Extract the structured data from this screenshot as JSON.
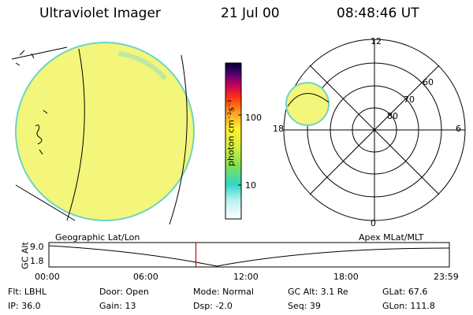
{
  "header": {
    "instrument": "Ultraviolet Imager",
    "date": "21 Jul 00",
    "time": "08:48:46 UT"
  },
  "colorbar": {
    "unit_label": "photon cm⁻²s⁻¹",
    "ticks": [
      "100",
      "10"
    ]
  },
  "polar_plot": {
    "mlt_labels": [
      "12",
      "18",
      "6",
      "0"
    ],
    "lat_labels": [
      "60",
      "70",
      "80"
    ]
  },
  "altitude_plot": {
    "ylabel": "GC Alt",
    "yticks": [
      "9.0",
      "1.8"
    ],
    "left_title": "Geographic Lat/Lon",
    "right_title": "Apex MLat/MLT",
    "xticks": [
      "00:00",
      "06:00",
      "12:00",
      "18:00",
      "23:59"
    ],
    "current_time_hours": 8.81,
    "marker_color": "#cc0000"
  },
  "info": {
    "flt": "Flt: LBHL",
    "ip": "IP: 36.0",
    "door": "Door: Open",
    "gain": "Gain: 13",
    "mode": "Mode: Normal",
    "dsp": "Dsp:   -2.0",
    "gcalt": "GC Alt: 3.1 Re",
    "seq": "Seq: 39",
    "glat": "GLat:  67.6",
    "glon": "GLon: 111.8"
  },
  "colors": {
    "disk_fill": "#f1f57a",
    "disk_edge": "#7fd8c8",
    "grid": "#000000"
  }
}
